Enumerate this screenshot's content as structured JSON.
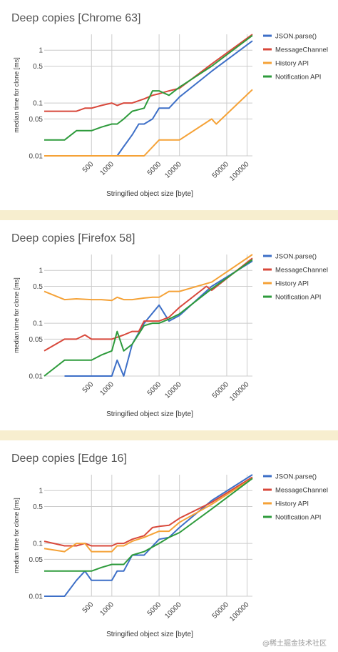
{
  "colors": {
    "page_background": "#f7eecf",
    "panel_background": "#ffffff",
    "gridline": "#cccccc",
    "text": "#444444",
    "JSON.parse()": "#3d6fc7",
    "MessageChannel": "#d8483b",
    "History API": "#f5a237",
    "Notification API": "#2e9b3c"
  },
  "watermark": "@稀土掘金技术社区",
  "chart_data": [
    {
      "type": "line",
      "title": "Deep copies [Chrome 63]",
      "xlabel": "Stringified object size [byte]",
      "ylabel": "median time for clone [ms]",
      "xscale": "log",
      "yscale": "log",
      "xlim": [
        100,
        120000
      ],
      "ylim": [
        0.01,
        2
      ],
      "x_ticks": [
        "500",
        "1000",
        "5000",
        "10000",
        "50000",
        "100000"
      ],
      "y_ticks": [
        "1",
        "0.5",
        "0.1",
        "0.05",
        "0.01"
      ],
      "legend_position": "right",
      "series": [
        {
          "name": "JSON.parse()",
          "x": [
            100,
            200,
            300,
            500,
            1000,
            1200,
            1500,
            2000,
            2500,
            3000,
            4000,
            5000,
            7000,
            10000,
            30000,
            120000
          ],
          "y": [
            0.01,
            0.01,
            0.01,
            0.01,
            0.01,
            0.01,
            0.015,
            0.025,
            0.04,
            0.04,
            0.05,
            0.08,
            0.08,
            0.13,
            0.4,
            1.5
          ]
        },
        {
          "name": "MessageChannel",
          "x": [
            100,
            200,
            300,
            400,
            500,
            700,
            1000,
            1200,
            1500,
            2000,
            3000,
            4000,
            5000,
            7000,
            10000,
            30000,
            120000
          ],
          "y": [
            0.07,
            0.07,
            0.07,
            0.08,
            0.08,
            0.09,
            0.1,
            0.09,
            0.1,
            0.1,
            0.12,
            0.14,
            0.15,
            0.17,
            0.19,
            0.55,
            2
          ]
        },
        {
          "name": "History API",
          "x": [
            100,
            500,
            1000,
            3000,
            5000,
            7000,
            10000,
            30000,
            35000,
            120000
          ],
          "y": [
            0.01,
            0.01,
            0.01,
            0.01,
            0.02,
            0.02,
            0.02,
            0.05,
            0.04,
            0.18
          ]
        },
        {
          "name": "Notification API",
          "x": [
            100,
            200,
            300,
            500,
            700,
            1000,
            1200,
            1500,
            2000,
            3000,
            4000,
            5000,
            7000,
            10000,
            30000,
            120000
          ],
          "y": [
            0.02,
            0.02,
            0.03,
            0.03,
            0.035,
            0.04,
            0.04,
            0.05,
            0.07,
            0.08,
            0.17,
            0.17,
            0.14,
            0.2,
            0.5,
            1.9
          ]
        }
      ]
    },
    {
      "type": "line",
      "title": "Deep copies [Firefox 58]",
      "xlabel": "Stringified object size [byte]",
      "ylabel": "median time for clone [ms]",
      "xscale": "log",
      "yscale": "log",
      "xlim": [
        100,
        120000
      ],
      "ylim": [
        0.01,
        2
      ],
      "x_ticks": [
        "500",
        "1000",
        "5000",
        "10000",
        "50000",
        "100000"
      ],
      "y_ticks": [
        "1",
        "0.5",
        "0.1",
        "0.05",
        "0.01"
      ],
      "legend_position": "right",
      "series": [
        {
          "name": "JSON.parse()",
          "x": [
            200,
            300,
            500,
            700,
            1000,
            1200,
            1500,
            2000,
            3000,
            5000,
            7000,
            10000,
            30000,
            120000
          ],
          "y": [
            0.01,
            0.01,
            0.01,
            0.01,
            0.01,
            0.02,
            0.01,
            0.04,
            0.1,
            0.22,
            0.11,
            0.14,
            0.5,
            1.5
          ]
        },
        {
          "name": "MessageChannel",
          "x": [
            100,
            200,
            300,
            400,
            500,
            700,
            1000,
            1500,
            2000,
            2500,
            3000,
            4000,
            5000,
            7000,
            10000,
            25000,
            30000,
            120000
          ],
          "y": [
            0.03,
            0.05,
            0.05,
            0.06,
            0.05,
            0.05,
            0.05,
            0.06,
            0.07,
            0.07,
            0.11,
            0.11,
            0.11,
            0.13,
            0.2,
            0.5,
            0.42,
            1.7
          ]
        },
        {
          "name": "History API",
          "x": [
            100,
            200,
            300,
            500,
            700,
            1000,
            1200,
            1500,
            2000,
            3000,
            4000,
            5000,
            7000,
            10000,
            30000,
            120000
          ],
          "y": [
            0.4,
            0.28,
            0.29,
            0.28,
            0.28,
            0.27,
            0.31,
            0.28,
            0.28,
            0.3,
            0.31,
            0.31,
            0.4,
            0.4,
            0.6,
            2
          ]
        },
        {
          "name": "Notification API",
          "x": [
            100,
            200,
            300,
            500,
            700,
            1000,
            1200,
            1500,
            2000,
            3000,
            4000,
            5000,
            7000,
            10000,
            30000,
            120000
          ],
          "y": [
            0.01,
            0.02,
            0.02,
            0.02,
            0.025,
            0.03,
            0.07,
            0.03,
            0.04,
            0.09,
            0.1,
            0.1,
            0.12,
            0.15,
            0.45,
            1.6
          ]
        }
      ]
    },
    {
      "type": "line",
      "title": "Deep copies [Edge 16]",
      "xlabel": "Stringified object size [byte]",
      "ylabel": "median time for clone [ms]",
      "xscale": "log",
      "yscale": "log",
      "xlim": [
        100,
        120000
      ],
      "ylim": [
        0.01,
        2
      ],
      "x_ticks": [
        "500",
        "1000",
        "5000",
        "10000",
        "50000",
        "100000"
      ],
      "y_ticks": [
        "1",
        "0.5",
        "0.1",
        "0.05",
        "0.01"
      ],
      "legend_position": "right",
      "series": [
        {
          "name": "JSON.parse()",
          "x": [
            100,
            200,
            300,
            400,
            500,
            700,
            1000,
            1200,
            1500,
            2000,
            3000,
            5000,
            7000,
            10000,
            30000,
            120000
          ],
          "y": [
            0.01,
            0.01,
            0.02,
            0.03,
            0.02,
            0.02,
            0.02,
            0.03,
            0.03,
            0.06,
            0.06,
            0.12,
            0.13,
            0.2,
            0.65,
            2
          ]
        },
        {
          "name": "MessageChannel",
          "x": [
            100,
            200,
            300,
            400,
            500,
            700,
            1000,
            1200,
            1500,
            2000,
            3000,
            4000,
            5000,
            7000,
            10000,
            30000,
            120000
          ],
          "y": [
            0.11,
            0.09,
            0.09,
            0.1,
            0.09,
            0.09,
            0.09,
            0.1,
            0.1,
            0.12,
            0.14,
            0.2,
            0.21,
            0.22,
            0.3,
            0.6,
            1.8
          ]
        },
        {
          "name": "History API",
          "x": [
            100,
            200,
            300,
            400,
            500,
            700,
            1000,
            1200,
            1500,
            2000,
            3000,
            5000,
            7000,
            10000,
            30000,
            120000
          ],
          "y": [
            0.08,
            0.07,
            0.1,
            0.1,
            0.07,
            0.07,
            0.07,
            0.09,
            0.09,
            0.11,
            0.13,
            0.17,
            0.17,
            0.25,
            0.55,
            1.7
          ]
        },
        {
          "name": "Notification API",
          "x": [
            100,
            200,
            300,
            400,
            500,
            700,
            1000,
            1200,
            1500,
            2000,
            3000,
            5000,
            7000,
            10000,
            30000,
            120000
          ],
          "y": [
            0.03,
            0.03,
            0.03,
            0.03,
            0.03,
            0.035,
            0.04,
            0.04,
            0.04,
            0.06,
            0.07,
            0.1,
            0.13,
            0.16,
            0.45,
            1.7
          ]
        }
      ]
    }
  ]
}
